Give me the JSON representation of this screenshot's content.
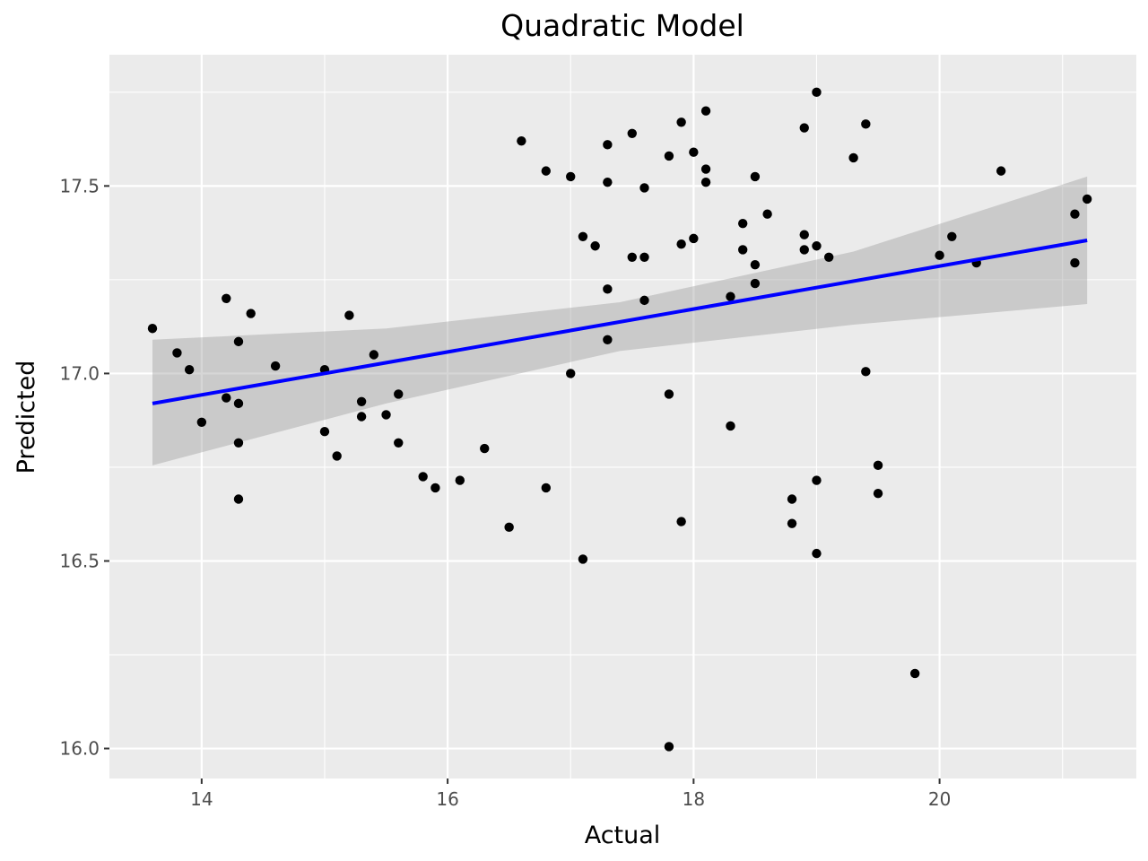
{
  "chart_data": {
    "type": "scatter",
    "title": "Quadratic Model",
    "xlabel": "Actual",
    "ylabel": "Predicted",
    "xlim": [
      13.25,
      21.6
    ],
    "ylim": [
      15.92,
      17.85
    ],
    "x_ticks": [
      14,
      16,
      18,
      20
    ],
    "x_tick_labels": [
      "14",
      "16",
      "18",
      "20"
    ],
    "y_ticks": [
      16.0,
      16.5,
      17.0,
      17.5
    ],
    "y_tick_labels": [
      "16.0",
      "16.5",
      "17.0",
      "17.5"
    ],
    "grid": true,
    "panel_color": "#ebebeb",
    "point_color": "#000000",
    "fit_line_color": "#0000ff",
    "ribbon_color": "#999999",
    "points": [
      [
        13.6,
        17.12
      ],
      [
        13.8,
        17.055
      ],
      [
        13.9,
        17.01
      ],
      [
        14.0,
        16.87
      ],
      [
        14.2,
        17.2
      ],
      [
        14.2,
        16.935
      ],
      [
        14.3,
        17.085
      ],
      [
        14.3,
        16.92
      ],
      [
        14.3,
        16.815
      ],
      [
        14.3,
        16.665
      ],
      [
        14.4,
        17.16
      ],
      [
        14.6,
        17.02
      ],
      [
        15.0,
        17.01
      ],
      [
        15.0,
        16.845
      ],
      [
        15.1,
        16.78
      ],
      [
        15.2,
        17.155
      ],
      [
        15.3,
        16.925
      ],
      [
        15.3,
        16.885
      ],
      [
        15.4,
        17.05
      ],
      [
        15.5,
        16.89
      ],
      [
        15.6,
        16.945
      ],
      [
        15.6,
        16.815
      ],
      [
        15.8,
        16.725
      ],
      [
        15.9,
        16.695
      ],
      [
        16.1,
        16.715
      ],
      [
        16.3,
        16.8
      ],
      [
        16.5,
        16.59
      ],
      [
        16.6,
        17.62
      ],
      [
        16.8,
        17.54
      ],
      [
        16.8,
        16.695
      ],
      [
        17.0,
        17.525
      ],
      [
        17.0,
        17.0
      ],
      [
        17.1,
        17.365
      ],
      [
        17.1,
        16.505
      ],
      [
        17.2,
        17.34
      ],
      [
        17.3,
        17.61
      ],
      [
        17.3,
        17.51
      ],
      [
        17.3,
        17.225
      ],
      [
        17.3,
        17.09
      ],
      [
        17.5,
        17.64
      ],
      [
        17.5,
        17.31
      ],
      [
        17.6,
        17.495
      ],
      [
        17.6,
        17.31
      ],
      [
        17.6,
        17.195
      ],
      [
        17.8,
        17.58
      ],
      [
        17.8,
        16.945
      ],
      [
        17.8,
        16.005
      ],
      [
        17.9,
        17.67
      ],
      [
        17.9,
        17.345
      ],
      [
        17.9,
        16.605
      ],
      [
        18.0,
        17.59
      ],
      [
        18.0,
        17.36
      ],
      [
        18.1,
        17.7
      ],
      [
        18.1,
        17.545
      ],
      [
        18.1,
        17.51
      ],
      [
        18.3,
        17.205
      ],
      [
        18.3,
        16.86
      ],
      [
        18.4,
        17.4
      ],
      [
        18.4,
        17.33
      ],
      [
        18.5,
        17.525
      ],
      [
        18.5,
        17.29
      ],
      [
        18.5,
        17.24
      ],
      [
        18.6,
        17.425
      ],
      [
        18.8,
        16.665
      ],
      [
        18.8,
        16.6
      ],
      [
        18.9,
        17.655
      ],
      [
        18.9,
        17.37
      ],
      [
        18.9,
        17.33
      ],
      [
        19.0,
        17.75
      ],
      [
        19.0,
        17.34
      ],
      [
        19.0,
        16.715
      ],
      [
        19.0,
        16.52
      ],
      [
        19.1,
        17.31
      ],
      [
        19.3,
        17.575
      ],
      [
        19.4,
        17.665
      ],
      [
        19.4,
        17.005
      ],
      [
        19.5,
        16.755
      ],
      [
        19.5,
        16.68
      ],
      [
        19.8,
        16.2
      ],
      [
        20.0,
        17.315
      ],
      [
        20.1,
        17.365
      ],
      [
        20.3,
        17.295
      ],
      [
        20.5,
        17.54
      ],
      [
        21.1,
        17.425
      ],
      [
        21.1,
        17.295
      ],
      [
        21.2,
        17.465
      ]
    ],
    "fit_line": {
      "x": [
        13.6,
        21.2
      ],
      "y": [
        16.92,
        17.355
      ]
    },
    "confidence_band": {
      "x": [
        13.6,
        15.5,
        17.4,
        19.3,
        21.2
      ],
      "lower": [
        16.755,
        16.92,
        17.06,
        17.13,
        17.185
      ],
      "upper": [
        17.09,
        17.12,
        17.19,
        17.325,
        17.525
      ]
    }
  }
}
